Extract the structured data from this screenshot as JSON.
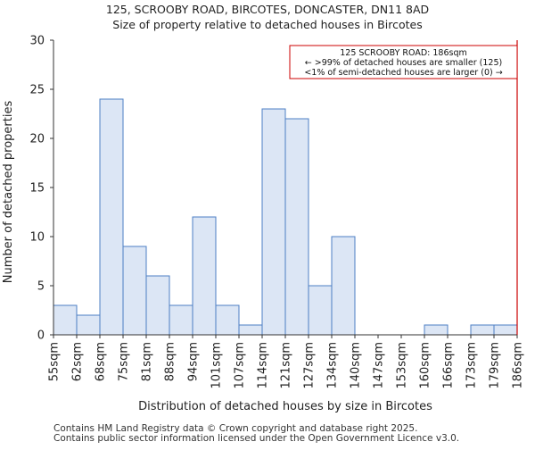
{
  "chart_data": {
    "type": "bar",
    "title": "125, SCROOBY ROAD, BIRCOTES, DONCASTER, DN11 8AD",
    "subtitle": "Size of property relative to detached houses in Bircotes",
    "xlabel": "Distribution of detached houses by size in Bircotes",
    "ylabel": "Number of detached properties",
    "ylim": [
      0,
      30
    ],
    "yticks": [
      0,
      5,
      10,
      15,
      20,
      25,
      30
    ],
    "bin_edges": [
      "55sqm",
      "62sqm",
      "68sqm",
      "75sqm",
      "81sqm",
      "88sqm",
      "94sqm",
      "101sqm",
      "107sqm",
      "114sqm",
      "121sqm",
      "127sqm",
      "134sqm",
      "140sqm",
      "147sqm",
      "153sqm",
      "160sqm",
      "166sqm",
      "173sqm",
      "179sqm",
      "186sqm"
    ],
    "values": [
      3,
      2,
      24,
      9,
      6,
      3,
      12,
      3,
      1,
      23,
      22,
      5,
      10,
      0,
      0,
      0,
      1,
      0,
      1,
      1
    ],
    "bar_color": "#dce6f5",
    "bar_edge_color": "#4d7fc4",
    "marker": {
      "value_index": 20,
      "color": "#cc0000",
      "lines": [
        "125 SCROOBY ROAD: 186sqm",
        "← >99% of detached houses are smaller (125)",
        "<1% of semi-detached houses are larger (0) →"
      ]
    },
    "grid": false
  },
  "footer": {
    "line1": "Contains HM Land Registry data © Crown copyright and database right 2025.",
    "line2": "Contains public sector information licensed under the Open Government Licence v3.0."
  }
}
